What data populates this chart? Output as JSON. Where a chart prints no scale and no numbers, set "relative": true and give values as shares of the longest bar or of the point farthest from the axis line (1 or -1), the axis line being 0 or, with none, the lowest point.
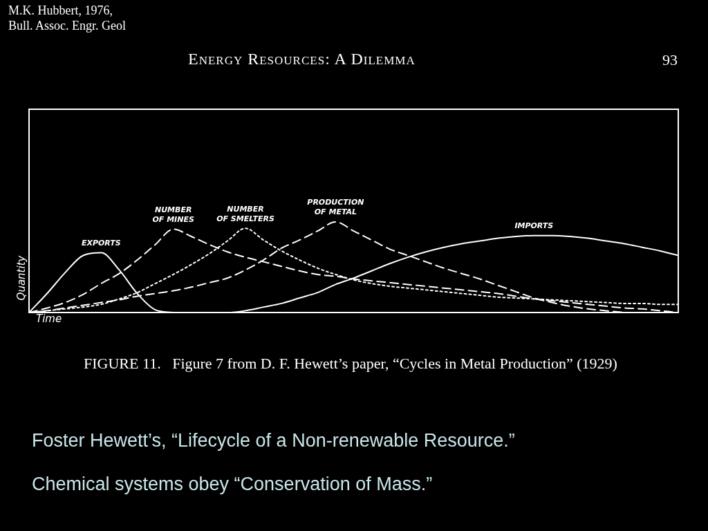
{
  "chart_data": {
    "type": "line",
    "relative": true,
    "title": "Energy Resources: A Dilemma",
    "xlabel": "Time",
    "ylabel": "Quantity",
    "legend": false,
    "marker": "none",
    "categories": [
      null,
      null,
      null,
      null,
      null,
      null,
      null,
      null,
      null,
      null,
      null,
      null,
      null,
      null,
      null,
      null,
      null,
      null,
      null,
      null,
      null,
      null,
      null,
      null,
      null,
      null,
      null,
      null,
      null,
      null,
      null,
      null,
      null,
      null,
      null,
      null,
      null
    ],
    "series": [
      {
        "name": "EXPORTS",
        "color": "#ffffff",
        "line_style": "solid",
        "values": [
          0,
          0.21,
          0.44,
          0.63,
          0.66,
          0.47,
          0.21,
          0.03,
          0,
          null,
          null,
          null,
          null,
          null,
          null,
          null,
          null,
          null,
          null,
          null,
          null,
          null,
          null,
          null,
          null,
          null,
          null,
          null,
          null,
          null,
          null,
          null,
          null,
          null,
          null,
          null,
          null
        ]
      },
      {
        "name": "NUMBER OF MINES",
        "color": "#ffffff",
        "line_style": "dashed",
        "values": [
          0,
          0.05,
          0.11,
          0.2,
          0.32,
          0.43,
          0.58,
          0.75,
          0.92,
          0.84,
          0.75,
          0.67,
          0.61,
          0.56,
          0.51,
          0.46,
          0.42,
          0.4,
          0.37,
          0.35,
          0.33,
          0.31,
          0.29,
          0.27,
          0.25,
          0.23,
          0.21,
          0.18,
          0.15,
          0.13,
          0.11,
          0.09,
          0.07,
          0.05,
          0.04,
          0.02,
          0
        ]
      },
      {
        "name": "NUMBER OF SMELTERS",
        "color": "#ffffff",
        "line_style": "dotted",
        "values": [
          0,
          0.02,
          0.04,
          0.06,
          0.09,
          0.15,
          0.22,
          0.32,
          0.42,
          0.53,
          0.65,
          0.79,
          0.93,
          0.8,
          0.68,
          0.58,
          0.49,
          0.42,
          0.36,
          0.32,
          0.29,
          0.27,
          0.25,
          0.23,
          0.21,
          0.19,
          0.17,
          0.16,
          0.15,
          0.14,
          0.13,
          0.12,
          0.11,
          0.1,
          0.1,
          0.09,
          0.09
        ]
      },
      {
        "name": "PRODUCTION OF METAL",
        "color": "#ffffff",
        "line_style": "dashed",
        "values": [
          0,
          0.02,
          0.05,
          0.08,
          0.11,
          0.14,
          0.18,
          0.21,
          0.24,
          0.28,
          0.33,
          0.38,
          0.47,
          0.58,
          0.71,
          0.8,
          0.9,
          1,
          0.9,
          0.8,
          0.7,
          0.63,
          0.56,
          0.49,
          0.43,
          0.37,
          0.3,
          0.23,
          0.16,
          0.11,
          0.07,
          0.04,
          0.02,
          0,
          null,
          null,
          null
        ]
      },
      {
        "name": "IMPORTS",
        "color": "#ffffff",
        "line_style": "solid",
        "values": [
          null,
          null,
          null,
          null,
          null,
          null,
          null,
          null,
          null,
          null,
          0,
          0,
          0.02,
          0.06,
          0.1,
          0.16,
          0.22,
          0.31,
          0.38,
          0.46,
          0.54,
          0.61,
          0.67,
          0.72,
          0.76,
          0.79,
          0.82,
          0.84,
          0.85,
          0.85,
          0.84,
          0.82,
          0.79,
          0.76,
          0.72,
          0.68,
          0.63
        ]
      }
    ],
    "annotations": [
      "M.K. Hubbert, 1976, Bull. Assoc. Engr. Geol",
      "93",
      "FIGURE 11.   Figure 7 from D. F. Hewett’s paper, “Cycles in Metal Production” (1929)",
      "Foster Hewett’s, “Lifecycle of a Non-renewable Resource.”",
      "Chemical systems obey “Conservation of Mass.”"
    ]
  }
}
